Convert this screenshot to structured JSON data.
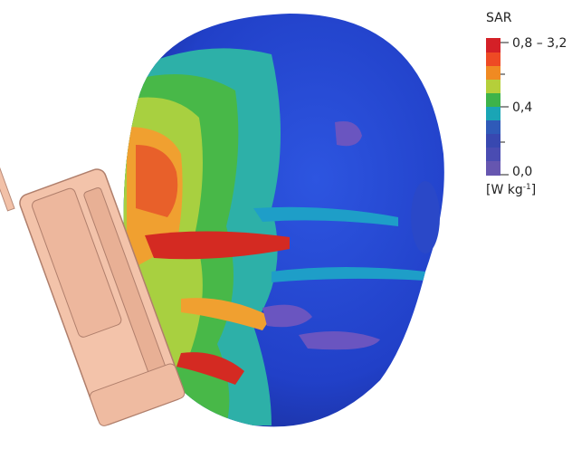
{
  "legend": {
    "title": "SAR",
    "labels": [
      "0,8 – 3,2",
      "0,4",
      "0,0"
    ],
    "unit": {
      "base": "[W kg",
      "exponent": "-1",
      "close": "]"
    }
  }
}
